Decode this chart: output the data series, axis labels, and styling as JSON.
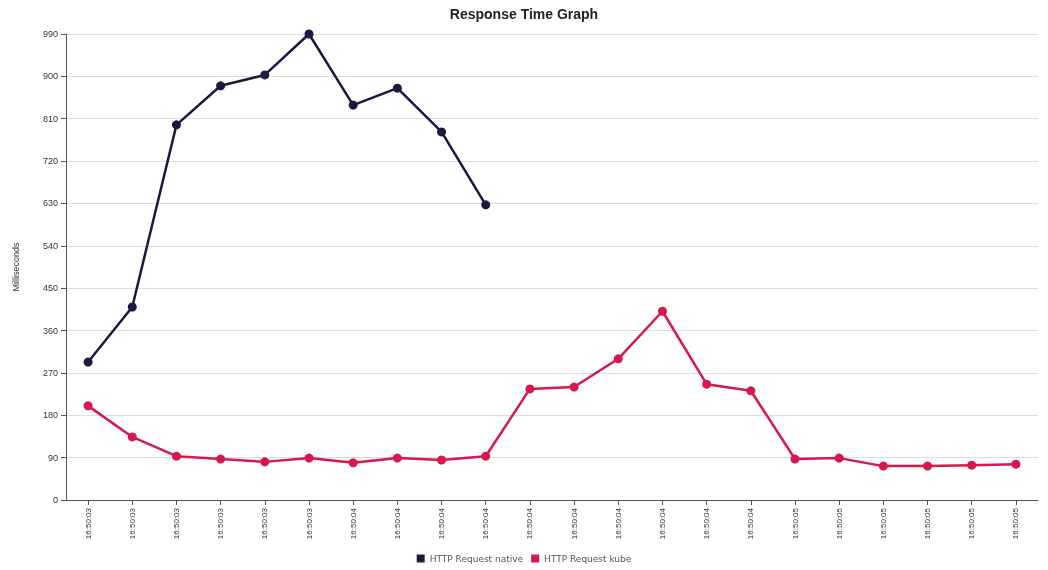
{
  "chart_data": {
    "type": "line",
    "title": "Response Time Graph",
    "ylabel": "Milliseconds",
    "categories": [
      "16:50:03",
      "16:50:03",
      "16:50:03",
      "16:50:03",
      "16:50:03",
      "16:50:03",
      "16:50:04",
      "16:50:04",
      "16:50:04",
      "16:50:04",
      "16:50:04",
      "16:50:04",
      "16:50:04",
      "16:50:04",
      "16:50:04",
      "16:50:04",
      "16:50:05",
      "16:50:05",
      "16:50:05",
      "16:50:05",
      "16:50:05",
      "16:50:05"
    ],
    "series": [
      {
        "name": "HTTP Request native",
        "color": "#1a1a40",
        "values": [
          293,
          410,
          797,
          880,
          903,
          990,
          839,
          875,
          782,
          627,
          null,
          null,
          null,
          null,
          null,
          null,
          null,
          null,
          null,
          null,
          null,
          null
        ]
      },
      {
        "name": "HTTP Request kube",
        "color": "#d6194a",
        "values": [
          200,
          134,
          93,
          87,
          81,
          89,
          79,
          89,
          85,
          93,
          236,
          240,
          300,
          401,
          246,
          232,
          87,
          89,
          72,
          72,
          74,
          76
        ]
      }
    ],
    "ylim": [
      0,
      990
    ],
    "yticks": [
      0,
      90,
      180,
      270,
      360,
      450,
      540,
      630,
      720,
      810,
      900,
      990
    ],
    "grid": "y",
    "legend": "bottom",
    "marker": "circle",
    "line_style": "solid"
  }
}
